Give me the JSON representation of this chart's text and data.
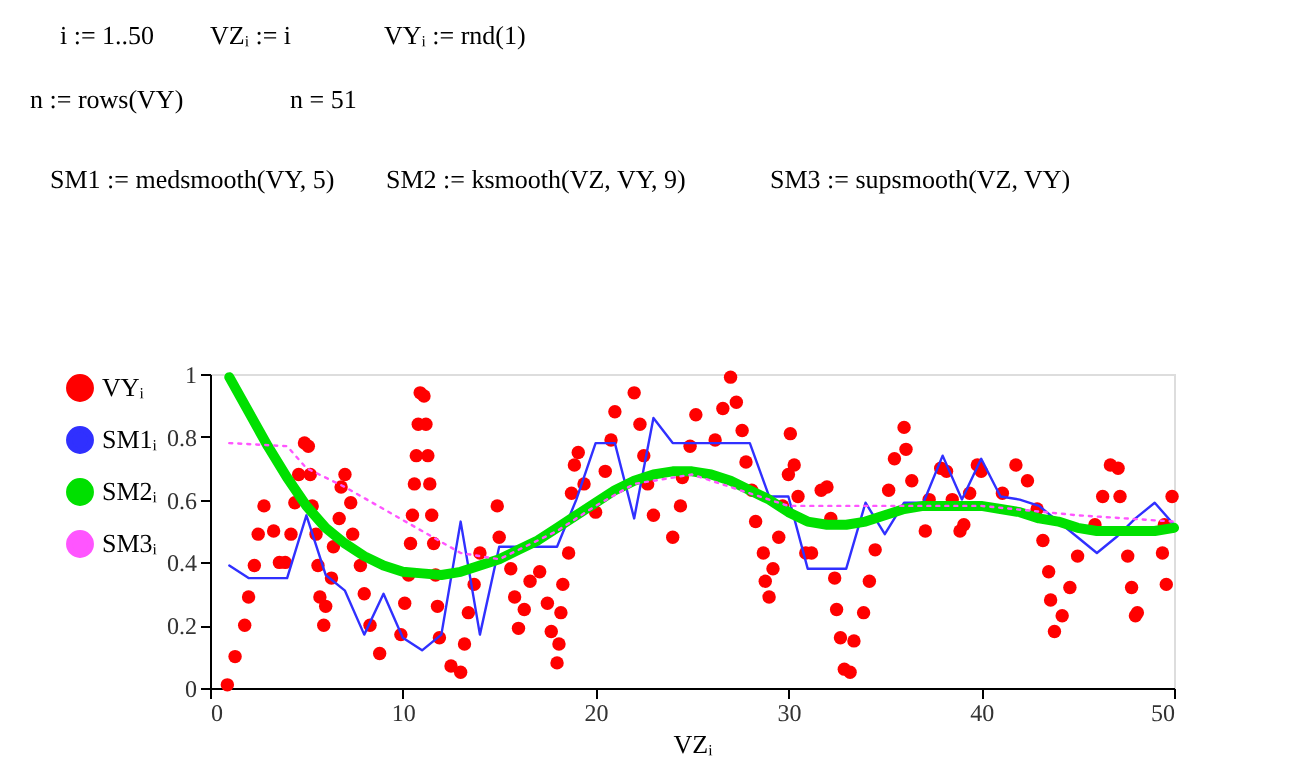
{
  "chart_data": {
    "type": "scatter",
    "xlabel": "VZᵢ",
    "xlim": [
      0,
      50
    ],
    "ylim": [
      0,
      1
    ],
    "xticks": [
      0,
      10,
      20,
      30,
      40,
      50
    ],
    "yticks": [
      0,
      0.2,
      0.4,
      0.6,
      0.8,
      1
    ],
    "grid": false,
    "legend": "left",
    "annotations": [
      "i := 1..50",
      "VZᵢ := i",
      "VYᵢ := rnd(1)",
      "n := rows(VY)",
      "n = 51",
      "SM1 := medsmooth(VY, 5)",
      "SM2 := ksmooth(VZ, VY, 9)",
      "SM3 := supsmooth(VZ, VY)"
    ],
    "series": [
      {
        "name": "VYᵢ",
        "marker": "circle",
        "color": "#ff0000",
        "x": [
          0.9,
          1.3,
          1.8,
          2.0,
          2.3,
          2.5,
          2.8,
          3.3,
          3.6,
          3.9,
          4.2,
          4.4,
          4.6,
          4.9,
          5.1,
          5.2,
          5.3,
          5.5,
          5.6,
          5.7,
          5.9,
          6.0,
          6.3,
          6.4,
          6.7,
          6.8,
          7.0,
          7.3,
          7.4,
          7.8,
          8.0,
          8.3,
          8.8,
          9.9,
          10.1,
          10.3,
          10.4,
          10.5,
          10.6,
          10.7,
          10.8,
          10.9,
          11.1,
          11.2,
          11.3,
          11.4,
          11.5,
          11.6,
          11.7,
          11.8,
          11.9,
          12.5,
          13.0,
          13.2,
          13.4,
          13.7,
          14.0,
          14.9,
          15.0,
          15.6,
          15.8,
          16.0,
          16.3,
          16.6,
          17.1,
          17.5,
          17.7,
          18.0,
          18.1,
          18.2,
          18.3,
          18.6,
          18.75,
          18.9,
          19.1,
          19.4,
          20.0,
          20.5,
          20.8,
          21.0,
          22.0,
          22.3,
          22.5,
          22.7,
          23.0,
          24.0,
          24.4,
          24.5,
          24.9,
          25.2,
          26.2,
          26.6,
          27.0,
          27.3,
          27.6,
          27.8,
          28.1,
          28.3,
          28.7,
          28.8,
          29.0,
          29.2,
          29.5,
          29.7,
          30.0,
          30.1,
          30.3,
          30.5,
          30.9,
          31.2,
          31.7,
          32.0,
          32.2,
          32.4,
          32.5,
          32.7,
          32.9,
          33.2,
          33.4,
          33.9,
          34.2,
          34.5,
          35.2,
          35.5,
          36.0,
          36.1,
          36.4,
          37.1,
          37.3,
          37.9,
          38.2,
          38.5,
          38.9,
          39.1,
          39.4,
          39.8,
          40.0,
          41.1,
          41.8,
          42.4,
          42.9,
          43.2,
          43.5,
          43.6,
          43.8,
          44.2,
          44.6,
          45.0,
          45.9,
          46.3,
          46.7,
          47.1,
          47.2,
          47.6,
          47.8,
          48.0,
          48.1,
          49.4,
          49.5,
          49.6,
          49.9
        ],
        "values": [
          0.01,
          0.1,
          0.2,
          0.29,
          0.39,
          0.49,
          0.58,
          0.5,
          0.4,
          0.4,
          0.49,
          0.59,
          0.68,
          0.78,
          0.77,
          0.68,
          0.58,
          0.49,
          0.39,
          0.29,
          0.2,
          0.26,
          0.35,
          0.45,
          0.54,
          0.64,
          0.68,
          0.59,
          0.49,
          0.39,
          0.3,
          0.2,
          0.11,
          0.17,
          0.27,
          0.36,
          0.46,
          0.55,
          0.65,
          0.74,
          0.84,
          0.94,
          0.93,
          0.84,
          0.74,
          0.65,
          0.55,
          0.46,
          0.36,
          0.26,
          0.16,
          0.07,
          0.05,
          0.14,
          0.24,
          0.33,
          0.43,
          0.58,
          0.48,
          0.38,
          0.29,
          0.19,
          0.25,
          0.34,
          0.37,
          0.27,
          0.18,
          0.08,
          0.14,
          0.24,
          0.33,
          0.43,
          0.62,
          0.71,
          0.75,
          0.65,
          0.56,
          0.69,
          0.79,
          0.88,
          0.94,
          0.84,
          0.74,
          0.65,
          0.55,
          0.48,
          0.58,
          0.67,
          0.77,
          0.87,
          0.79,
          0.89,
          0.99,
          0.91,
          0.82,
          0.72,
          0.63,
          0.53,
          0.43,
          0.34,
          0.29,
          0.38,
          0.48,
          0.58,
          0.68,
          0.81,
          0.71,
          0.61,
          0.43,
          0.43,
          0.63,
          0.64,
          0.54,
          0.35,
          0.25,
          0.16,
          0.06,
          0.05,
          0.15,
          0.24,
          0.34,
          0.44,
          0.63,
          0.73,
          0.83,
          0.76,
          0.66,
          0.5,
          0.6,
          0.7,
          0.69,
          0.6,
          0.5,
          0.52,
          0.62,
          0.71,
          0.69,
          0.62,
          0.71,
          0.66,
          0.57,
          0.47,
          0.37,
          0.28,
          0.18,
          0.23,
          0.32,
          0.42,
          0.52,
          0.61,
          0.71,
          0.7,
          0.61,
          0.42,
          0.32,
          0.23,
          0.24,
          0.43,
          0.52,
          0.33,
          0.61
        ]
      },
      {
        "name": "SM1ᵢ",
        "type": "line",
        "line_style": "solid",
        "color": "#3030ff",
        "x": [
          1,
          2,
          3,
          4,
          5,
          6,
          7,
          8,
          9,
          10,
          11,
          12,
          13,
          14,
          15,
          16,
          17,
          18,
          19,
          20,
          21,
          22,
          23,
          24,
          25,
          26,
          27,
          28,
          29,
          30,
          31,
          32,
          33,
          34,
          35,
          36,
          37,
          38,
          39,
          40,
          41,
          42,
          43,
          44,
          45,
          46,
          47,
          48,
          49,
          50
        ],
        "values": [
          0.39,
          0.35,
          0.35,
          0.35,
          0.55,
          0.36,
          0.31,
          0.17,
          0.3,
          0.16,
          0.12,
          0.17,
          0.53,
          0.17,
          0.45,
          0.45,
          0.45,
          0.45,
          0.6,
          0.78,
          0.78,
          0.54,
          0.86,
          0.78,
          0.78,
          0.78,
          0.78,
          0.78,
          0.61,
          0.61,
          0.38,
          0.38,
          0.38,
          0.59,
          0.49,
          0.59,
          0.59,
          0.74,
          0.6,
          0.73,
          0.61,
          0.6,
          0.58,
          0.53,
          0.48,
          0.43,
          0.48,
          0.54,
          0.59,
          0.52
        ]
      },
      {
        "name": "SM2ᵢ",
        "type": "line",
        "line_style": "solid",
        "color": "#00e000",
        "x": [
          1,
          2,
          3,
          4,
          5,
          6,
          7,
          8,
          9,
          10,
          11,
          12,
          13,
          14,
          15,
          16,
          17,
          18,
          19,
          20,
          21,
          22,
          23,
          24,
          25,
          26,
          27,
          28,
          29,
          30,
          31,
          32,
          33,
          34,
          35,
          36,
          37,
          38,
          39,
          40,
          41,
          42,
          43,
          44,
          45,
          46,
          47,
          48,
          49,
          50
        ],
        "values": [
          0.99,
          0.88,
          0.77,
          0.67,
          0.58,
          0.51,
          0.46,
          0.42,
          0.39,
          0.37,
          0.365,
          0.36,
          0.37,
          0.39,
          0.41,
          0.44,
          0.47,
          0.51,
          0.55,
          0.59,
          0.63,
          0.66,
          0.68,
          0.69,
          0.69,
          0.68,
          0.66,
          0.63,
          0.6,
          0.56,
          0.53,
          0.52,
          0.52,
          0.53,
          0.55,
          0.57,
          0.58,
          0.58,
          0.58,
          0.58,
          0.57,
          0.56,
          0.54,
          0.53,
          0.51,
          0.5,
          0.5,
          0.5,
          0.5,
          0.51
        ]
      },
      {
        "name": "SM3ᵢ",
        "type": "line",
        "line_style": "dotted",
        "color": "#ff55ff",
        "x": [
          1,
          4,
          5,
          7,
          9,
          11,
          13,
          15,
          16,
          18,
          20,
          22,
          25,
          28,
          30,
          32,
          34,
          36,
          40,
          45,
          50
        ],
        "values": [
          0.78,
          0.77,
          0.7,
          0.64,
          0.57,
          0.5,
          0.43,
          0.41,
          0.44,
          0.5,
          0.58,
          0.65,
          0.68,
          0.62,
          0.58,
          0.58,
          0.58,
          0.58,
          0.58,
          0.55,
          0.53
        ]
      }
    ]
  }
}
